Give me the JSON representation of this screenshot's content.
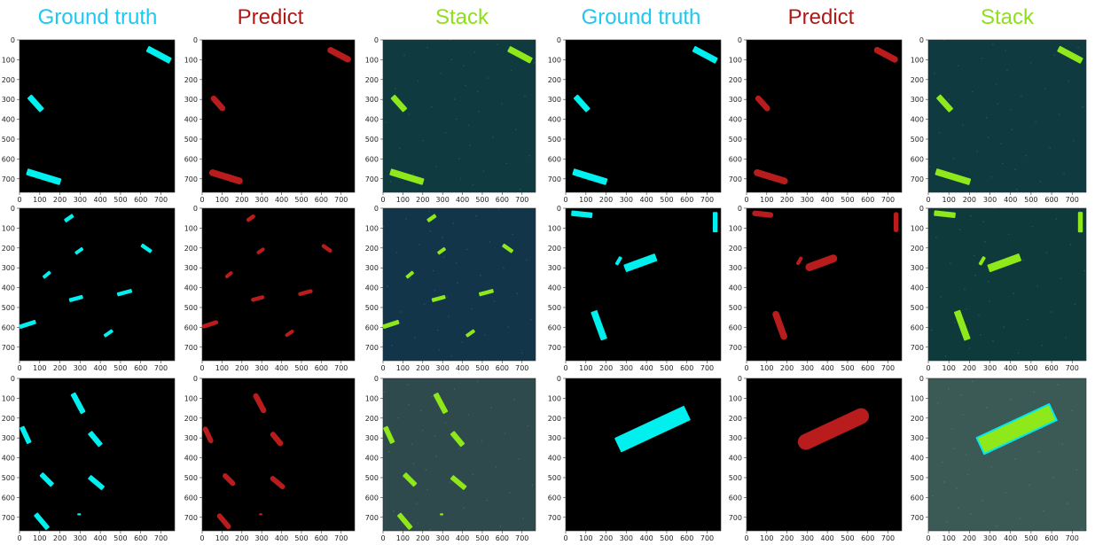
{
  "header_colors": {
    "ground_truth": "#1ec8f0",
    "predict": "#b01818",
    "stack": "#8ee01a"
  },
  "headers": [
    {
      "label": "Ground truth",
      "kind": "ground_truth"
    },
    {
      "label": "Predict",
      "kind": "predict"
    },
    {
      "label": "Stack",
      "kind": "stack"
    },
    {
      "label": "Ground truth",
      "kind": "ground_truth"
    },
    {
      "label": "Predict",
      "kind": "predict"
    },
    {
      "label": "Stack",
      "kind": "stack"
    }
  ],
  "axis": {
    "x_ticks": [
      0,
      100,
      200,
      300,
      400,
      500,
      600,
      700
    ],
    "y_ticks": [
      0,
      100,
      200,
      300,
      400,
      500,
      600,
      700
    ],
    "range": [
      0,
      768
    ]
  },
  "mask_colors": {
    "ground_truth": "#00f0f0",
    "predict": "#b81c1c",
    "stack": "#8ee81a",
    "stack_outline": "#00e8f0"
  },
  "background_colors": {
    "mask": "#000000",
    "sea_a": "#0e3a40",
    "sea_b": "#12354a",
    "sea_c": "#2f4a4c",
    "sea_d": "#0f3a3c",
    "sea_e": "#3b5a56"
  },
  "groups": [
    {
      "sea": "sea_a",
      "ships": [
        {
          "cx": 690,
          "cy": 75,
          "len": 130,
          "w": 32,
          "ang": 28
        },
        {
          "cx": 80,
          "cy": 320,
          "len": 95,
          "w": 30,
          "ang": 48
        },
        {
          "cx": 120,
          "cy": 690,
          "len": 175,
          "w": 34,
          "ang": 17
        }
      ]
    },
    {
      "sea": "sea_d",
      "ships": [
        {
          "cx": 80,
          "cy": 30,
          "len": 105,
          "w": 28,
          "ang": 6
        },
        {
          "cx": 740,
          "cy": 70,
          "len": 100,
          "w": 24,
          "ang": 90
        },
        {
          "cx": 262,
          "cy": 265,
          "len": 45,
          "w": 18,
          "ang": -60
        },
        {
          "cx": 370,
          "cy": 275,
          "len": 165,
          "w": 40,
          "ang": -20
        },
        {
          "cx": 165,
          "cy": 590,
          "len": 150,
          "w": 34,
          "ang": 70
        }
      ]
    },
    {
      "sea": "sea_b",
      "ships": [
        {
          "cx": 245,
          "cy": 50,
          "len": 50,
          "w": 20,
          "ang": -35
        },
        {
          "cx": 628,
          "cy": 202,
          "len": 60,
          "w": 20,
          "ang": 35
        },
        {
          "cx": 295,
          "cy": 215,
          "len": 45,
          "w": 18,
          "ang": -35
        },
        {
          "cx": 135,
          "cy": 335,
          "len": 45,
          "w": 18,
          "ang": -40
        },
        {
          "cx": 520,
          "cy": 425,
          "len": 75,
          "w": 20,
          "ang": -15
        },
        {
          "cx": 280,
          "cy": 455,
          "len": 70,
          "w": 20,
          "ang": -15
        },
        {
          "cx": 40,
          "cy": 585,
          "len": 85,
          "w": 22,
          "ang": -18
        },
        {
          "cx": 440,
          "cy": 630,
          "len": 50,
          "w": 18,
          "ang": -35
        }
      ]
    },
    {
      "sea": "sea_e",
      "ships": [
        {
          "cx": 430,
          "cy": 255,
          "len": 380,
          "w": 80,
          "ang": -25
        }
      ]
    },
    {
      "sea": "sea_c",
      "ships": [
        {
          "cx": 290,
          "cy": 125,
          "len": 110,
          "w": 28,
          "ang": 62
        },
        {
          "cx": 30,
          "cy": 285,
          "len": 90,
          "w": 26,
          "ang": 65
        },
        {
          "cx": 375,
          "cy": 305,
          "len": 85,
          "w": 28,
          "ang": 50
        },
        {
          "cx": 135,
          "cy": 510,
          "len": 80,
          "w": 26,
          "ang": 45
        },
        {
          "cx": 380,
          "cy": 525,
          "len": 90,
          "w": 26,
          "ang": 40
        },
        {
          "cx": 110,
          "cy": 720,
          "len": 95,
          "w": 26,
          "ang": 50
        },
        {
          "cx": 295,
          "cy": 685,
          "len": 18,
          "w": 10,
          "ang": 0
        }
      ]
    }
  ],
  "panels": [
    {
      "kind": "ground_truth",
      "group": 0
    },
    {
      "kind": "predict",
      "group": 0
    },
    {
      "kind": "stack",
      "group": 0
    },
    {
      "kind": "ground_truth",
      "group": 0
    },
    {
      "kind": "predict",
      "group": 0
    },
    {
      "kind": "stack",
      "group": 0
    },
    {
      "kind": "ground_truth",
      "group": 2
    },
    {
      "kind": "predict",
      "group": 2
    },
    {
      "kind": "stack",
      "group": 2
    },
    {
      "kind": "ground_truth",
      "group": 1
    },
    {
      "kind": "predict",
      "group": 1
    },
    {
      "kind": "stack",
      "group": 1
    },
    {
      "kind": "ground_truth",
      "group": 4
    },
    {
      "kind": "predict",
      "group": 4
    },
    {
      "kind": "stack",
      "group": 4
    },
    {
      "kind": "ground_truth",
      "group": 3
    },
    {
      "kind": "predict",
      "group": 3
    },
    {
      "kind": "stack",
      "group": 3
    }
  ]
}
